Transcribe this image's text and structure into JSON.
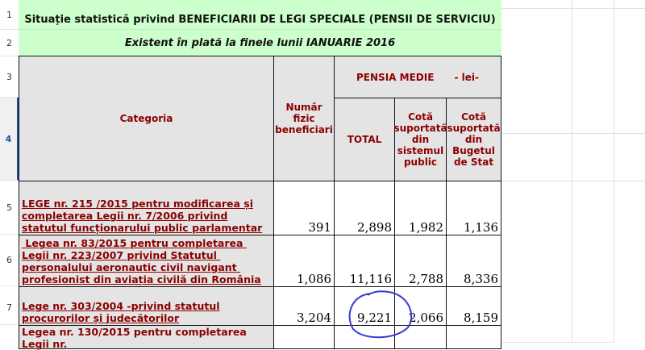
{
  "rows_headers": [
    "1",
    "2",
    "3",
    "4",
    "5",
    "6",
    "7"
  ],
  "title": "Situație statistică privind BENEFICIARII DE LEGI SPECIALE (PENSII DE SERVICIU)",
  "subtitle": "Existent în plată la finele lunii IANUARIE 2016",
  "headers": {
    "categoria": "Categoria",
    "numar": "Număr fizic beneficiari",
    "pensia": "PENSIA MEDIE      - lei-",
    "total": "TOTAL",
    "sistem": "Cotă suportată din sistemul public",
    "buget": "Cotă suportată din Bugetul de Stat"
  },
  "rows": [
    {
      "cat": "LEGE nr. 215 /2015  pentru modificarea și completarea Legii nr. 7/2006 privind statutul funcționarului public parlamentar",
      "numar": "391",
      "total": "2,898",
      "sistem": "1,982",
      "buget": "1,136"
    },
    {
      "cat": " Legea nr. 83/2015 pentru completarea Legii nr. 223/2007 privind Statutul personalului aeronautic civil navigant profesionist din aviația civilă din România",
      "numar": "1,086",
      "total": "11,116",
      "sistem": "2,788",
      "buget": "8,336"
    },
    {
      "cat": "Lege nr. 303/2004 -privind statutul procurorilor și judecătorilor",
      "numar": "3,204",
      "total": "9,221",
      "sistem": "2,066",
      "buget": "8,159"
    },
    {
      "cat": "Legea nr. 130/2015 pentru completarea Legii nr.",
      "numar": "",
      "total": "",
      "sistem": "",
      "buget": ""
    }
  ],
  "annotation_color": "#3a3ad0"
}
